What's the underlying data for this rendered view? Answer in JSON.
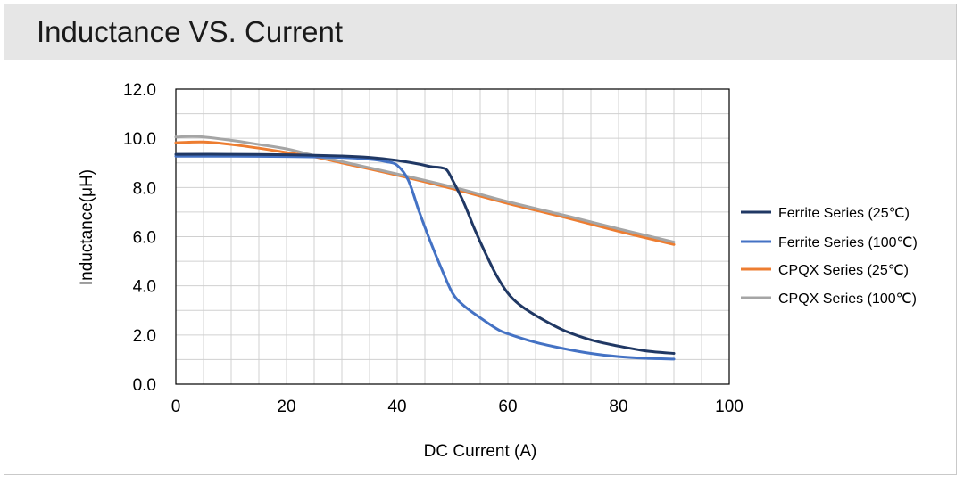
{
  "title": "Inductance VS. Current",
  "chart_data": {
    "type": "line",
    "title": "Inductance VS. Current",
    "xlabel": "DC Current (A)",
    "ylabel": "Inductance(μH)",
    "xlim": [
      0,
      100
    ],
    "ylim": [
      0,
      12
    ],
    "x_ticks": [
      "0",
      "20",
      "40",
      "60",
      "80",
      "100"
    ],
    "y_ticks": [
      "0.0",
      "2.0",
      "4.0",
      "6.0",
      "8.0",
      "10.0",
      "12.0"
    ],
    "grid": true,
    "legend_position": "right",
    "series": [
      {
        "name": "Ferrite Series (25℃)",
        "color": "#203864",
        "points": [
          [
            0,
            9.35
          ],
          [
            10,
            9.35
          ],
          [
            20,
            9.33
          ],
          [
            30,
            9.28
          ],
          [
            35,
            9.22
          ],
          [
            40,
            9.1
          ],
          [
            44,
            8.95
          ],
          [
            46,
            8.85
          ],
          [
            48,
            8.8
          ],
          [
            49,
            8.7
          ],
          [
            50,
            8.3
          ],
          [
            52,
            7.4
          ],
          [
            54,
            6.3
          ],
          [
            56,
            5.3
          ],
          [
            58,
            4.4
          ],
          [
            60,
            3.7
          ],
          [
            62,
            3.25
          ],
          [
            65,
            2.8
          ],
          [
            70,
            2.2
          ],
          [
            75,
            1.8
          ],
          [
            80,
            1.55
          ],
          [
            85,
            1.35
          ],
          [
            90,
            1.25
          ]
        ]
      },
      {
        "name": "Ferrite Series (100℃)",
        "color": "#4472c4",
        "points": [
          [
            0,
            9.27
          ],
          [
            10,
            9.27
          ],
          [
            20,
            9.26
          ],
          [
            30,
            9.22
          ],
          [
            35,
            9.15
          ],
          [
            38,
            9.05
          ],
          [
            40,
            8.9
          ],
          [
            42,
            8.3
          ],
          [
            44,
            7.0
          ],
          [
            46,
            5.8
          ],
          [
            48,
            4.7
          ],
          [
            50,
            3.7
          ],
          [
            52,
            3.2
          ],
          [
            55,
            2.7
          ],
          [
            58,
            2.25
          ],
          [
            60,
            2.05
          ],
          [
            65,
            1.7
          ],
          [
            70,
            1.45
          ],
          [
            75,
            1.25
          ],
          [
            80,
            1.12
          ],
          [
            85,
            1.05
          ],
          [
            90,
            1.02
          ]
        ]
      },
      {
        "name": "CPQX Series (25℃)",
        "color": "#ed7d31",
        "points": [
          [
            0,
            9.82
          ],
          [
            5,
            9.85
          ],
          [
            10,
            9.75
          ],
          [
            15,
            9.6
          ],
          [
            20,
            9.42
          ],
          [
            25,
            9.25
          ],
          [
            30,
            9.0
          ],
          [
            40,
            8.5
          ],
          [
            50,
            7.95
          ],
          [
            60,
            7.35
          ],
          [
            70,
            6.8
          ],
          [
            80,
            6.22
          ],
          [
            90,
            5.68
          ]
        ]
      },
      {
        "name": "CPQX Series (100℃)",
        "color": "#a5a5a5",
        "points": [
          [
            0,
            10.05
          ],
          [
            4,
            10.07
          ],
          [
            10,
            9.92
          ],
          [
            15,
            9.75
          ],
          [
            20,
            9.57
          ],
          [
            25,
            9.3
          ],
          [
            30,
            9.05
          ],
          [
            40,
            8.55
          ],
          [
            50,
            8.02
          ],
          [
            60,
            7.42
          ],
          [
            70,
            6.88
          ],
          [
            80,
            6.32
          ],
          [
            90,
            5.78
          ]
        ]
      }
    ]
  }
}
